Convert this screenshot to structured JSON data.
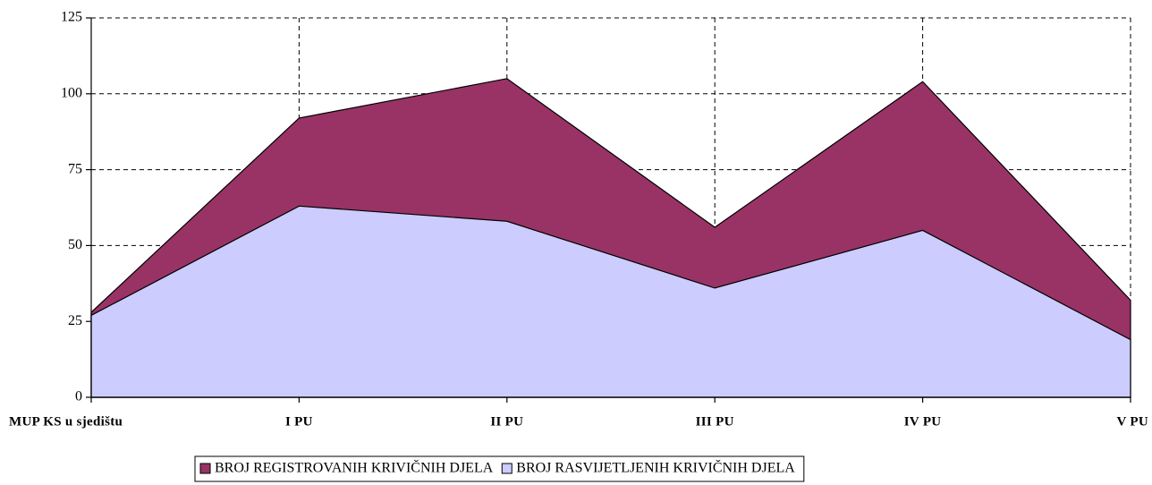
{
  "chart_data": {
    "type": "area",
    "categories": [
      "MUP KS u sjedištu",
      "I PU",
      "II PU",
      "III PU",
      "IV PU",
      "V PU"
    ],
    "series": [
      {
        "name": "BROJ REGISTROVANIH KRIVIČNIH DJELA",
        "color": "#993366",
        "values": [
          28,
          92,
          105,
          56,
          104,
          32
        ]
      },
      {
        "name": "BROJ RASVIJETLJENIH KRIVIČNIH DJELA",
        "color": "#ccccff",
        "values": [
          27,
          63,
          58,
          36,
          55,
          19
        ]
      }
    ],
    "ylim": [
      0,
      125
    ],
    "yticks": [
      0,
      25,
      50,
      75,
      100,
      125
    ],
    "grid": true,
    "legend": "bottom"
  }
}
